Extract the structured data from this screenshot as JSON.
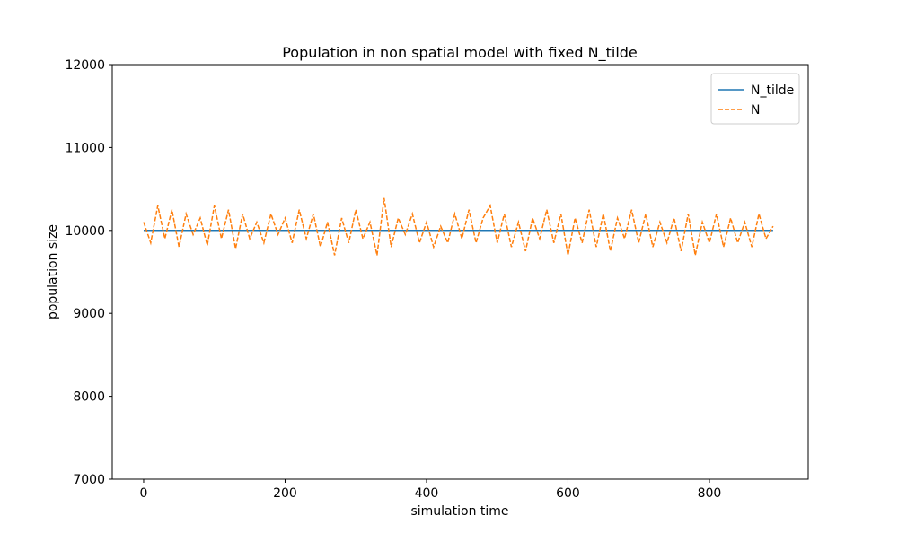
{
  "chart_data": {
    "type": "line",
    "title": "Population in non spatial model with fixed N_tilde",
    "xlabel": "simulation time",
    "ylabel": "population size",
    "x": [
      0,
      10,
      20,
      30,
      40,
      50,
      60,
      70,
      80,
      90,
      100,
      110,
      120,
      130,
      140,
      150,
      160,
      170,
      180,
      190,
      200,
      210,
      220,
      230,
      240,
      250,
      260,
      270,
      280,
      290,
      300,
      310,
      320,
      330,
      340,
      350,
      360,
      370,
      380,
      390,
      400,
      410,
      420,
      430,
      440,
      450,
      460,
      470,
      480,
      490,
      500,
      510,
      520,
      530,
      540,
      550,
      560,
      570,
      580,
      590,
      600,
      610,
      620,
      630,
      640,
      650,
      660,
      670,
      680,
      690,
      700,
      710,
      720,
      730,
      740,
      750,
      760,
      770,
      780,
      790,
      800,
      810,
      820,
      830,
      840,
      850,
      860,
      870,
      880,
      890
    ],
    "series": [
      {
        "name": "N_tilde",
        "color": "#1f77b4",
        "dashed": false,
        "values": [
          10000,
          10000,
          10000,
          10000,
          10000,
          10000,
          10000,
          10000,
          10000,
          10000,
          10000,
          10000,
          10000,
          10000,
          10000,
          10000,
          10000,
          10000,
          10000,
          10000,
          10000,
          10000,
          10000,
          10000,
          10000,
          10000,
          10000,
          10000,
          10000,
          10000,
          10000,
          10000,
          10000,
          10000,
          10000,
          10000,
          10000,
          10000,
          10000,
          10000,
          10000,
          10000,
          10000,
          10000,
          10000,
          10000,
          10000,
          10000,
          10000,
          10000,
          10000,
          10000,
          10000,
          10000,
          10000,
          10000,
          10000,
          10000,
          10000,
          10000,
          10000,
          10000,
          10000,
          10000,
          10000,
          10000,
          10000,
          10000,
          10000,
          10000,
          10000,
          10000,
          10000,
          10000,
          10000,
          10000,
          10000,
          10000,
          10000,
          10000,
          10000,
          10000,
          10000,
          10000,
          10000,
          10000,
          10000,
          10000,
          10000,
          10000
        ]
      },
      {
        "name": "N",
        "color": "#ff7f0e",
        "dashed": true,
        "values": [
          10100,
          9850,
          10300,
          9900,
          10250,
          9800,
          10200,
          9950,
          10150,
          9820,
          10300,
          9900,
          10250,
          9780,
          10200,
          9900,
          10100,
          9850,
          10200,
          9950,
          10150,
          9850,
          10250,
          9900,
          10200,
          9800,
          10100,
          9700,
          10150,
          9850,
          10250,
          9900,
          10100,
          9700,
          10390,
          9800,
          10150,
          9950,
          10200,
          9850,
          10100,
          9800,
          10050,
          9850,
          10200,
          9900,
          10250,
          9850,
          10150,
          10300,
          9850,
          10200,
          9800,
          10100,
          9750,
          10150,
          9900,
          10250,
          9850,
          10200,
          9700,
          10150,
          9850,
          10250,
          9800,
          10200,
          9750,
          10150,
          9900,
          10250,
          9850,
          10200,
          9800,
          10100,
          9850,
          10150,
          9750,
          10200,
          9700,
          10100,
          9850,
          10200,
          9800,
          10150,
          9850,
          10100,
          9800,
          10200,
          9900,
          10050
        ]
      }
    ],
    "xlim": [
      -44.4,
      939.7
    ],
    "ylim": [
      7000,
      12000
    ],
    "xticks": [
      0,
      200,
      400,
      600,
      800
    ],
    "yticks": [
      7000,
      8000,
      9000,
      10000,
      11000,
      12000
    ],
    "grid": false,
    "legend": "upper right"
  }
}
